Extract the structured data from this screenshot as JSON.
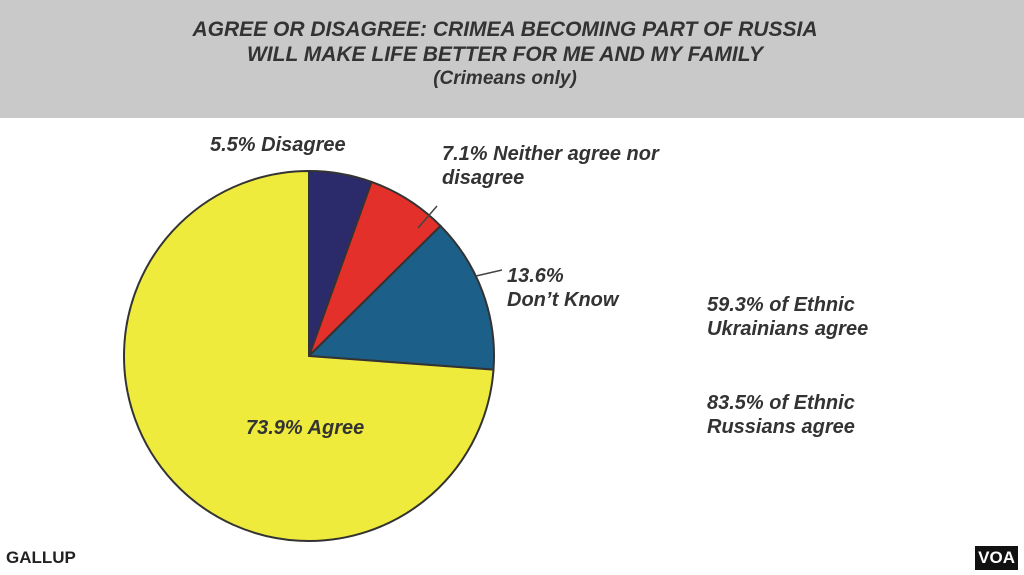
{
  "chart_data": {
    "type": "pie",
    "title": [
      "AGREE OR DISAGREE: CRIMEA BECOMING PART OF RUSSIA",
      "WILL MAKE LIFE BETTER FOR ME AND MY FAMILY"
    ],
    "subtitle": "(Crimeans only)",
    "categories": [
      "Disagree",
      "Neither agree nor disagree",
      "Don’t Know",
      "Agree"
    ],
    "values": [
      5.5,
      7.1,
      13.6,
      73.9
    ],
    "value_labels": [
      "5.5%",
      "7.1%",
      "13.6%",
      "73.9%"
    ],
    "colors": [
      "#2b2b6b",
      "#e3302b",
      "#1c5f88",
      "#efeb3c"
    ],
    "annotations": [
      "59.3% of Ethnic Ukrainians agree",
      "83.5% of Ethnic Russians agree"
    ],
    "source": "GALLUP",
    "credit": "VOA"
  }
}
